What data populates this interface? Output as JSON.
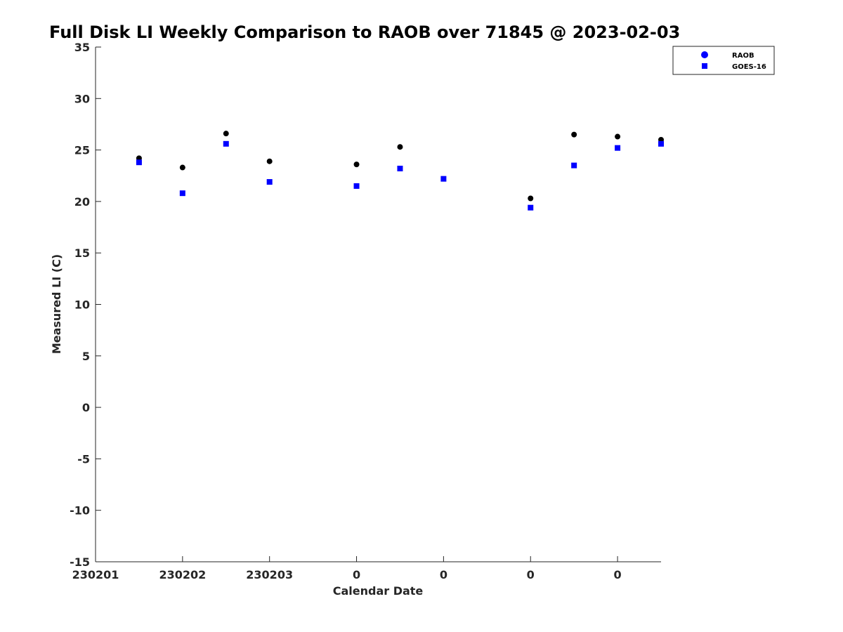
{
  "chart_data": {
    "type": "scatter",
    "title": "Full Disk LI Weekly Comparison to RAOB over 71845 @ 2023-02-03",
    "xlabel": "Calendar Date",
    "ylabel": "Measured LI (C)",
    "ylim": [
      -15,
      35
    ],
    "yticks": [
      35,
      30,
      25,
      20,
      15,
      10,
      5,
      0,
      -5,
      -10,
      -15
    ],
    "xlim": [
      0,
      6.5
    ],
    "xticks": [
      {
        "x": 0,
        "label": "230201"
      },
      {
        "x": 1,
        "label": "230202"
      },
      {
        "x": 2,
        "label": "230203"
      },
      {
        "x": 3,
        "label": "0"
      },
      {
        "x": 4,
        "label": "0"
      },
      {
        "x": 5,
        "label": "0"
      },
      {
        "x": 6,
        "label": "0"
      }
    ],
    "grid": false,
    "legend_position": "top-right",
    "series": [
      {
        "name": "RAOB",
        "marker": "circle",
        "color": "#000000",
        "legend_color": "#0000ff",
        "points": [
          {
            "x": 0.5,
            "y": 24.2
          },
          {
            "x": 1.0,
            "y": 23.3
          },
          {
            "x": 1.5,
            "y": 26.6
          },
          {
            "x": 2.0,
            "y": 23.9
          },
          {
            "x": 3.0,
            "y": 23.6
          },
          {
            "x": 3.5,
            "y": 25.3
          },
          {
            "x": 5.0,
            "y": 20.3
          },
          {
            "x": 5.5,
            "y": 26.5
          },
          {
            "x": 6.0,
            "y": 26.3
          },
          {
            "x": 6.5,
            "y": 26.0
          }
        ]
      },
      {
        "name": "GOES-16",
        "marker": "square",
        "color": "#0000ff",
        "legend_color": "#0000ff",
        "points": [
          {
            "x": 0.5,
            "y": 23.8
          },
          {
            "x": 1.0,
            "y": 20.8
          },
          {
            "x": 1.5,
            "y": 25.6
          },
          {
            "x": 2.0,
            "y": 21.9
          },
          {
            "x": 3.0,
            "y": 21.5
          },
          {
            "x": 3.5,
            "y": 23.2
          },
          {
            "x": 4.0,
            "y": 22.2
          },
          {
            "x": 5.0,
            "y": 19.4
          },
          {
            "x": 5.5,
            "y": 23.5
          },
          {
            "x": 6.0,
            "y": 25.2
          },
          {
            "x": 6.5,
            "y": 25.6
          }
        ]
      }
    ]
  }
}
